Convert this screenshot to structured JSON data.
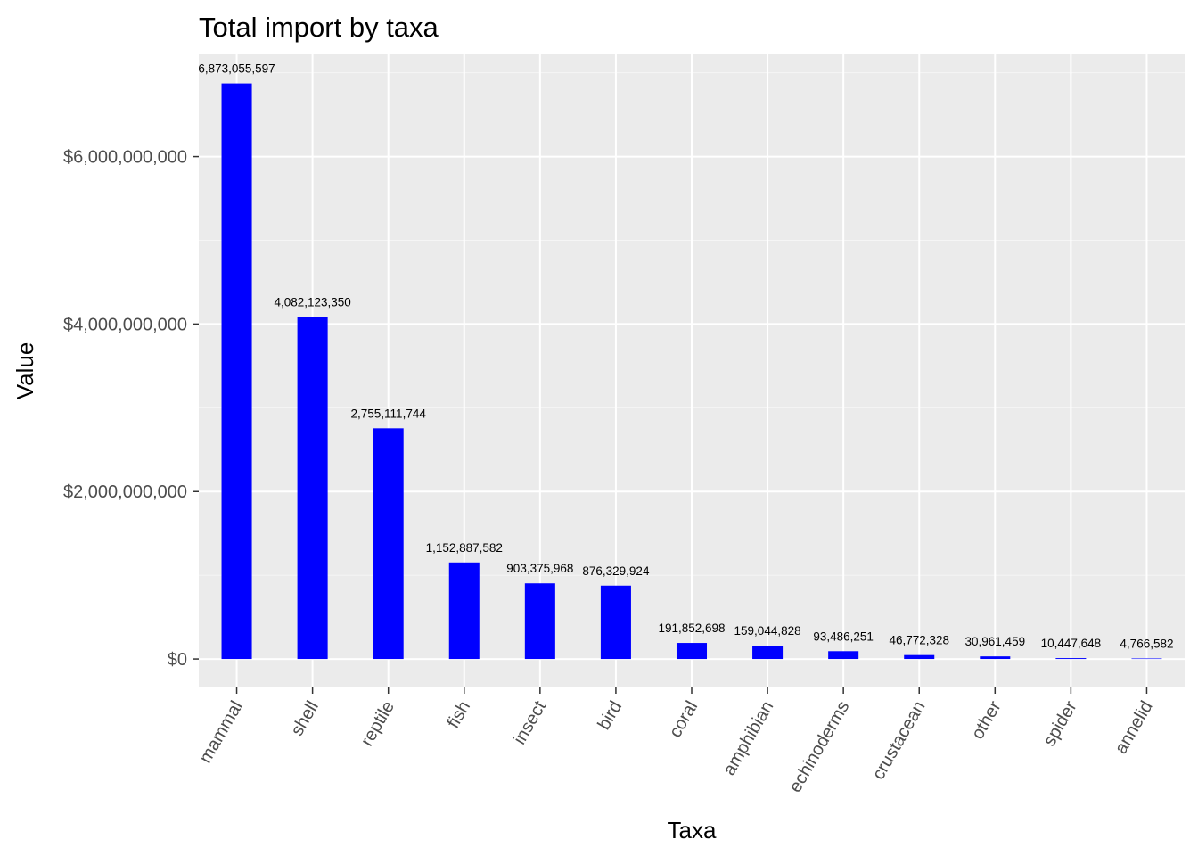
{
  "chart_data": {
    "type": "bar",
    "title": "Total import by taxa",
    "xlabel": "Taxa",
    "ylabel": "Value",
    "categories": [
      "mammal",
      "shell",
      "reptile",
      "fish",
      "insect",
      "bird",
      "coral",
      "amphibian",
      "echinoderms",
      "crustacean",
      "other",
      "spider",
      "annelid"
    ],
    "values": [
      6873055597,
      4082123350,
      2755111744,
      1152887582,
      903375968,
      876329924,
      191852698,
      159044828,
      93486251,
      46772328,
      30961459,
      10447648,
      4766582
    ],
    "value_labels": [
      "6,873,055,597",
      "4,082,123,350",
      "2,755,111,744",
      "1,152,887,582",
      "903,375,968",
      "876,329,924",
      "191,852,698",
      "159,044,828",
      "93,486,251",
      "46,772,328",
      "30,961,459",
      "10,447,648",
      "4,766,582"
    ],
    "yticks": [
      0,
      2000000000,
      4000000000,
      6000000000
    ],
    "ytick_labels": [
      "$0",
      "$2,000,000,000",
      "$4,000,000,000",
      "$6,000,000,000"
    ],
    "ylim": [
      -340000000,
      7220000000
    ],
    "grid": true,
    "legend": "none",
    "colors": {
      "bar": "#0000ff",
      "panel": "#ebebeb",
      "grid_major": "#ffffff",
      "grid_minor": "#f5f5f5",
      "tick": "#333333",
      "tick_text": "#4d4d4d"
    }
  }
}
